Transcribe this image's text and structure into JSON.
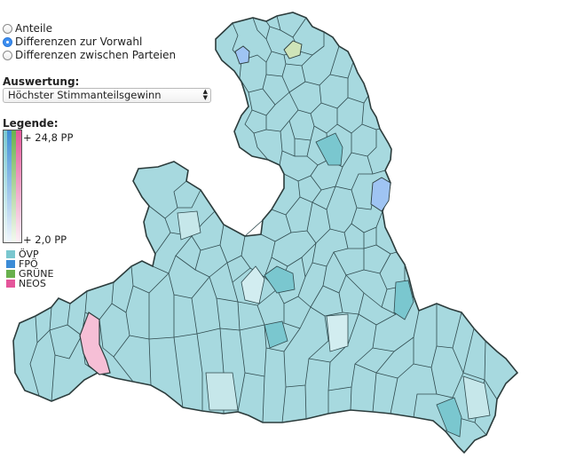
{
  "options": {
    "items": [
      {
        "label": "Anteile",
        "checked": false
      },
      {
        "label": "Differenzen zur Vorwahl",
        "checked": true
      },
      {
        "label": "Differenzen zwischen Parteien",
        "checked": false
      }
    ]
  },
  "evaluation": {
    "label": "Auswertung:",
    "selected": "Höchster Stimmanteilsgewinn"
  },
  "legend": {
    "title": "Legende:",
    "max_label": "+ 24,8 PP",
    "min_label": "+ 2,0 PP",
    "parties": [
      {
        "name": "ÖVP",
        "color": "#7ac7cf"
      },
      {
        "name": "FPÖ",
        "color": "#3b8bd6"
      },
      {
        "name": "GRÜNE",
        "color": "#68b04d"
      },
      {
        "name": "NEOS",
        "color": "#e4559a"
      }
    ]
  },
  "map": {
    "base_fill": "#a7d9df",
    "border_color": "#2c3c3c",
    "highlights": [
      {
        "party": "FPÖ",
        "fill": "#9fc4f3"
      },
      {
        "party": "GRÜNE",
        "fill": "#cfe4b8"
      },
      {
        "party": "NEOS",
        "fill": "#f6bfd6"
      }
    ]
  }
}
